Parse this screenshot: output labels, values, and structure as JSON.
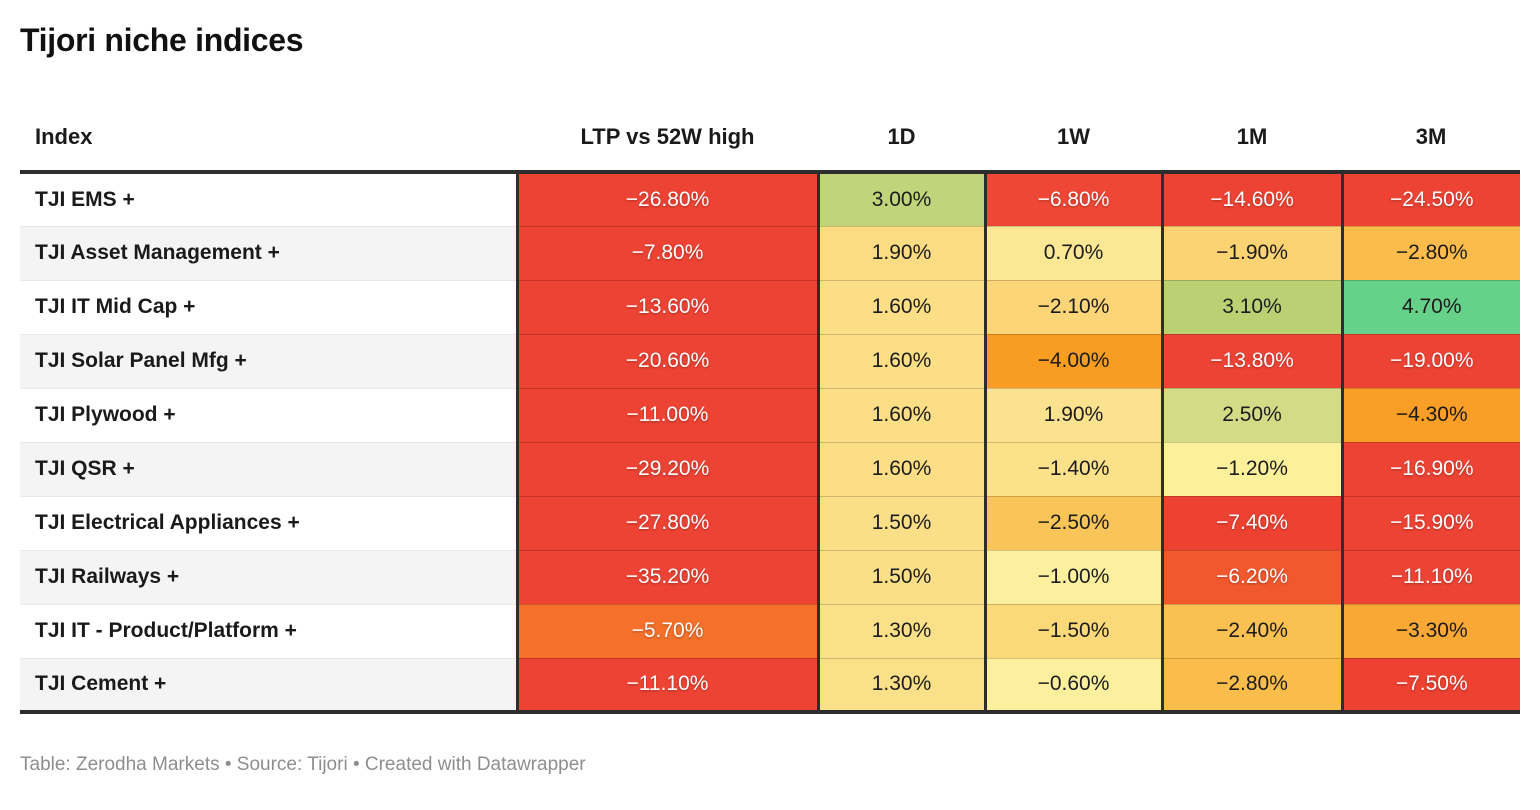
{
  "title": "Tijori niche indices",
  "footer": "Table: Zerodha Markets • Source: Tijori • Created with Datawrapper",
  "accent_colors": {
    "strong_negative_red": "#ed4334",
    "negative_orange_red": "#f1582e",
    "negative_orange": "#f4702b",
    "mid_orange": "#f99e26",
    "amber": "#fabd4c",
    "light_yellow": "#fbdf88",
    "pale_yellow": "#fcf09e",
    "yellow_green": "#bfd47b",
    "positive_green": "#66d189",
    "rule_dark": "#2d2d2d"
  },
  "table": {
    "columns": [
      "Index",
      "LTP vs 52W high",
      "1D",
      "1W",
      "1M",
      "3M"
    ],
    "rows": [
      {
        "index": "TJI EMS +",
        "values": [
          {
            "text": "−26.80%",
            "bg": "#ed4334",
            "light": true
          },
          {
            "text": "3.00%",
            "bg": "#bfd47b",
            "light": false
          },
          {
            "text": "−6.80%",
            "bg": "#ee4735",
            "light": true
          },
          {
            "text": "−14.60%",
            "bg": "#ed4334",
            "light": true
          },
          {
            "text": "−24.50%",
            "bg": "#ed4334",
            "light": true
          }
        ]
      },
      {
        "index": "TJI Asset Management +",
        "values": [
          {
            "text": "−7.80%",
            "bg": "#ed4334",
            "light": true
          },
          {
            "text": "1.90%",
            "bg": "#fbdc83",
            "light": false
          },
          {
            "text": "0.70%",
            "bg": "#fbe794",
            "light": false
          },
          {
            "text": "−1.90%",
            "bg": "#fbd372",
            "light": false
          },
          {
            "text": "−2.80%",
            "bg": "#fbbc4b",
            "light": false
          }
        ]
      },
      {
        "index": "TJI IT Mid Cap +",
        "values": [
          {
            "text": "−13.60%",
            "bg": "#ed4334",
            "light": true
          },
          {
            "text": "1.60%",
            "bg": "#fbde86",
            "light": false
          },
          {
            "text": "−2.10%",
            "bg": "#fbd577",
            "light": false
          },
          {
            "text": "3.10%",
            "bg": "#b9d173",
            "light": false
          },
          {
            "text": "4.70%",
            "bg": "#66d189",
            "light": false
          }
        ]
      },
      {
        "index": "TJI Solar Panel Mfg +",
        "values": [
          {
            "text": "−20.60%",
            "bg": "#ed4334",
            "light": true
          },
          {
            "text": "1.60%",
            "bg": "#fbde86",
            "light": false
          },
          {
            "text": "−4.00%",
            "bg": "#f99d22",
            "light": false
          },
          {
            "text": "−13.80%",
            "bg": "#ed4334",
            "light": true
          },
          {
            "text": "−19.00%",
            "bg": "#ed4334",
            "light": true
          }
        ]
      },
      {
        "index": "TJI Plywood +",
        "values": [
          {
            "text": "−11.00%",
            "bg": "#ed4334",
            "light": true
          },
          {
            "text": "1.60%",
            "bg": "#fbde86",
            "light": false
          },
          {
            "text": "1.90%",
            "bg": "#fbe28e",
            "light": false
          },
          {
            "text": "2.50%",
            "bg": "#d4db86",
            "light": false
          },
          {
            "text": "−4.30%",
            "bg": "#f99e26",
            "light": false
          }
        ]
      },
      {
        "index": "TJI QSR +",
        "values": [
          {
            "text": "−29.20%",
            "bg": "#ed4334",
            "light": true
          },
          {
            "text": "1.60%",
            "bg": "#fbde86",
            "light": false
          },
          {
            "text": "−1.40%",
            "bg": "#fbe189",
            "light": false
          },
          {
            "text": "−1.20%",
            "bg": "#fcf09b",
            "light": false
          },
          {
            "text": "−16.90%",
            "bg": "#ed4334",
            "light": true
          }
        ]
      },
      {
        "index": "TJI Electrical Appliances +",
        "values": [
          {
            "text": "−27.80%",
            "bg": "#ed4334",
            "light": true
          },
          {
            "text": "1.50%",
            "bg": "#fbdf88",
            "light": false
          },
          {
            "text": "−2.50%",
            "bg": "#fac558",
            "light": false
          },
          {
            "text": "−7.40%",
            "bg": "#ed4132",
            "light": true
          },
          {
            "text": "−15.90%",
            "bg": "#ed4334",
            "light": true
          }
        ]
      },
      {
        "index": "TJI Railways +",
        "values": [
          {
            "text": "−35.20%",
            "bg": "#ed4334",
            "light": true
          },
          {
            "text": "1.50%",
            "bg": "#fbdf88",
            "light": false
          },
          {
            "text": "−1.00%",
            "bg": "#fcf09e",
            "light": false
          },
          {
            "text": "−6.20%",
            "bg": "#f1582e",
            "light": true
          },
          {
            "text": "−11.10%",
            "bg": "#ed4334",
            "light": true
          }
        ]
      },
      {
        "index": "TJI IT - Product/Platform +",
        "values": [
          {
            "text": "−5.70%",
            "bg": "#f4702b",
            "light": true
          },
          {
            "text": "1.30%",
            "bg": "#fbe08a",
            "light": false
          },
          {
            "text": "−1.50%",
            "bg": "#fbd978",
            "light": false
          },
          {
            "text": "−2.40%",
            "bg": "#fac052",
            "light": false
          },
          {
            "text": "−3.30%",
            "bg": "#f9a835",
            "light": false
          }
        ]
      },
      {
        "index": "TJI Cement +",
        "values": [
          {
            "text": "−11.10%",
            "bg": "#ed4334",
            "light": true
          },
          {
            "text": "1.30%",
            "bg": "#fbe08a",
            "light": false
          },
          {
            "text": "−0.60%",
            "bg": "#fcf09e",
            "light": false
          },
          {
            "text": "−2.80%",
            "bg": "#fabd4c",
            "light": false
          },
          {
            "text": "−7.50%",
            "bg": "#ed4132",
            "light": true
          }
        ]
      }
    ]
  },
  "chart_data": {
    "type": "table",
    "title": "Tijori niche indices",
    "columns": [
      "Index",
      "LTP vs 52W high",
      "1D",
      "1W",
      "1M",
      "3M"
    ],
    "rows": [
      [
        "TJI EMS +",
        -26.8,
        3.0,
        -6.8,
        -14.6,
        -24.5
      ],
      [
        "TJI Asset Management +",
        -7.8,
        1.9,
        0.7,
        -1.9,
        -2.8
      ],
      [
        "TJI IT Mid Cap +",
        -13.6,
        1.6,
        -2.1,
        3.1,
        4.7
      ],
      [
        "TJI Solar Panel Mfg +",
        -20.6,
        1.6,
        -4.0,
        -13.8,
        -19.0
      ],
      [
        "TJI Plywood +",
        -11.0,
        1.6,
        1.9,
        2.5,
        -4.3
      ],
      [
        "TJI QSR +",
        -29.2,
        1.6,
        -1.4,
        -1.2,
        -16.9
      ],
      [
        "TJI Electrical Appliances +",
        -27.8,
        1.5,
        -2.5,
        -7.4,
        -15.9
      ],
      [
        "TJI Railways +",
        -35.2,
        1.5,
        -1.0,
        -6.2,
        -11.1
      ],
      [
        "TJI IT - Product/Platform +",
        -5.7,
        1.3,
        -1.5,
        -2.4,
        -3.3
      ],
      [
        "TJI Cement +",
        -11.1,
        1.3,
        -0.6,
        -2.8,
        -7.5
      ]
    ],
    "units": "percent",
    "color_scale": "diverging heatmap: deep red (strong negative) → orange → yellow (near zero) → yellow-green → green (positive)",
    "footer": "Table: Zerodha Markets • Source: Tijori • Created with Datawrapper"
  }
}
